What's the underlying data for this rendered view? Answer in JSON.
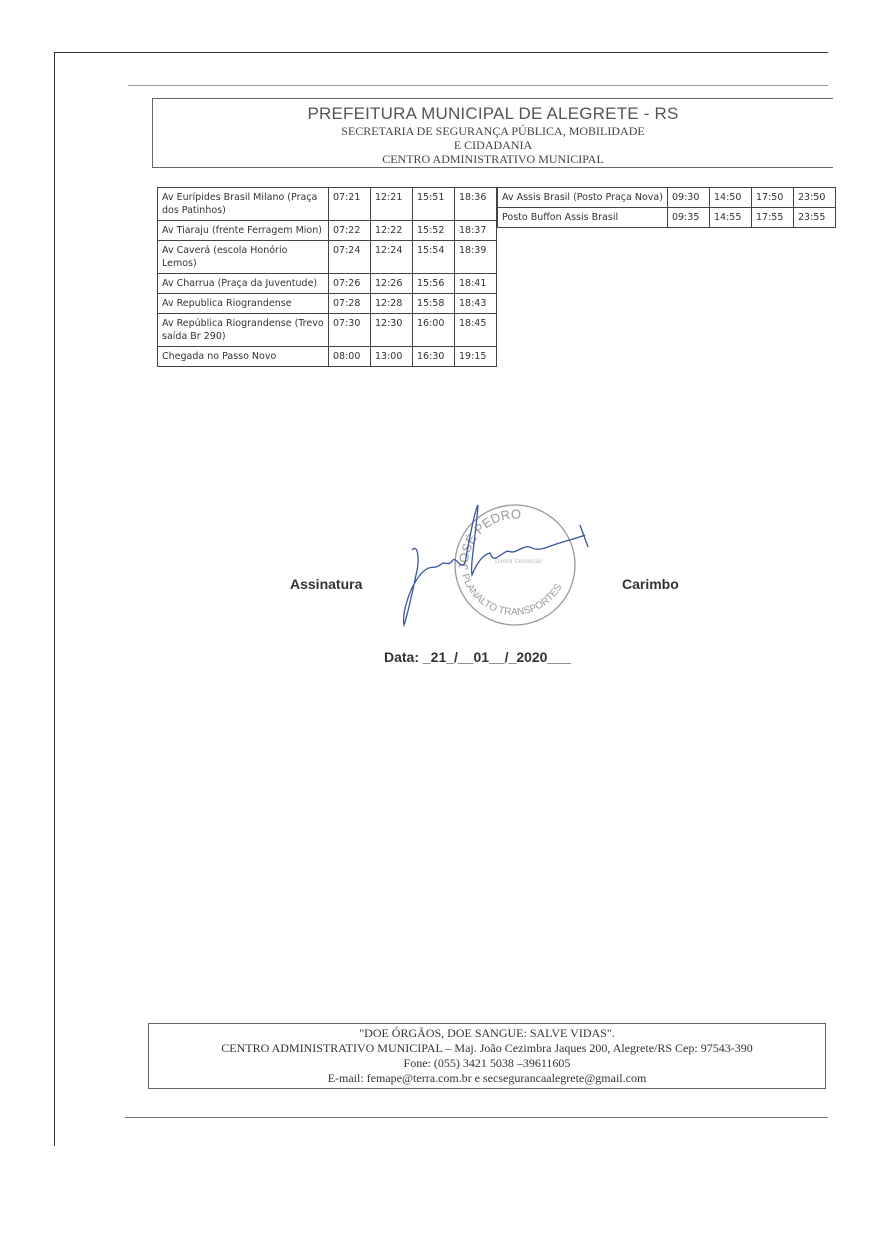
{
  "header": {
    "title": "PREFEITURA MUNICIPAL DE ALEGRETE - RS",
    "line1": "SECRETARIA DE SEGURANÇA PÚBLICA, MOBILIDADE",
    "line2": "E CIDADANIA",
    "line3": "CENTRO ADMINISTRATIVO MUNICIPAL"
  },
  "schedule_left": [
    {
      "stop": "Av Eurípides  Brasil Milano (Praça dos Patinhos)",
      "times": [
        "07:21",
        "12:21",
        "15:51",
        "18:36"
      ]
    },
    {
      "stop": "Av Tiaraju (frente Ferragem Mion)",
      "times": [
        "07:22",
        "12:22",
        "15:52",
        "18:37"
      ]
    },
    {
      "stop": "Av Caverá (escola Honório Lemos)",
      "times": [
        "07:24",
        "12:24",
        "15:54",
        "18:39"
      ]
    },
    {
      "stop": "Av Charrua (Praça da Juventude)",
      "times": [
        "07:26",
        "12:26",
        "15:56",
        "18:41"
      ]
    },
    {
      "stop": "Av Republica Riograndense",
      "times": [
        "07:28",
        "12:28",
        "15:58",
        "18:43"
      ]
    },
    {
      "stop": "Av República Riograndense (Trevo saída Br 290)",
      "times": [
        "07:30",
        "12:30",
        "16:00",
        "18:45"
      ]
    },
    {
      "stop": "Chegada no Passo Novo",
      "times": [
        "08:00",
        "13:00",
        "16:30",
        "19:15"
      ]
    }
  ],
  "schedule_right": [
    {
      "stop": "Av Assis Brasil (Posto Praça Nova)",
      "times": [
        "09:30",
        "14:50",
        "17:50",
        "23:50"
      ]
    },
    {
      "stop": "Posto Buffon Assis Brasil",
      "times": [
        "09:35",
        "14:55",
        "17:55",
        "23:55"
      ]
    }
  ],
  "signature": {
    "signature_label": "Assinatura",
    "stamp_label": "Carimbo",
    "stamp_text": [
      "JOSÉ PEDRO",
      "PLANALTO TRANSPORTES",
      "Diretor Comercial"
    ],
    "date_line": "Data: _21_/__01__/_2020___"
  },
  "footer": {
    "slogan": "\"DOE ÓRGÃOS, DOE SANGUE: SALVE VIDAS\".",
    "address": "CENTRO ADMINISTRATIVO MUNICIPAL – Maj. João Cezimbra Jaques 200, Alegrete/RS Cep: 97543-390",
    "phone": "Fone: (055) 3421 5038 –39611605",
    "email": "E-mail: femape@terra.com.br e secsegurancaalegrete@gmail.com"
  },
  "colors": {
    "ink": "#333333",
    "signature_ink": "#3a55a0",
    "stamp": "#9a9a9a"
  }
}
